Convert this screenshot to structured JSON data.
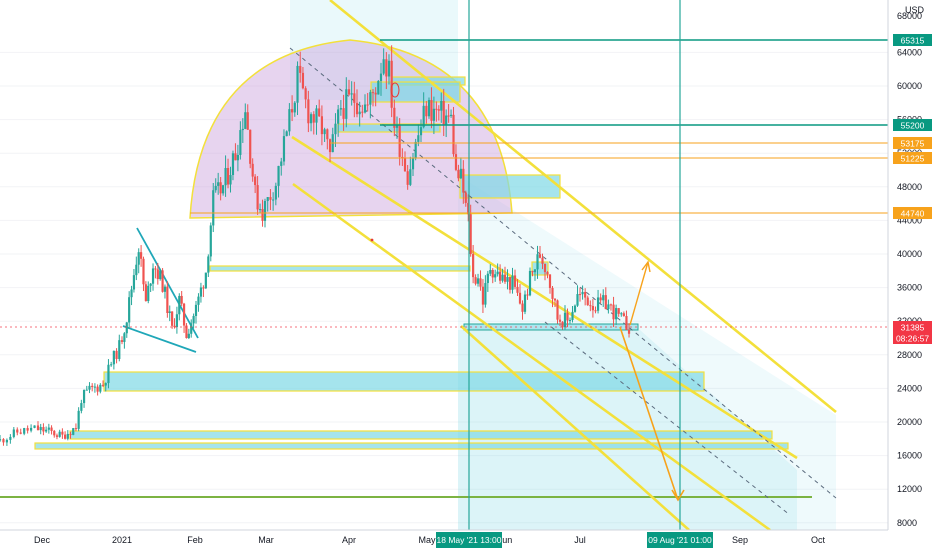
{
  "header": {
    "currency": "USD"
  },
  "price_axis": {
    "top_partial": "68000",
    "ticks": [
      "64000",
      "60000",
      "56000",
      "52000",
      "48000",
      "44000",
      "40000",
      "36000",
      "32000",
      "28000",
      "24000",
      "20000",
      "16000",
      "12000",
      "8000"
    ]
  },
  "time_axis": {
    "ticks": [
      "Dec",
      "2021",
      "Feb",
      "Mar",
      "Apr",
      "May",
      "Jun",
      "Jul",
      "Sep",
      "Oct"
    ]
  },
  "price_badges": [
    {
      "label": "65315",
      "color": "#089981"
    },
    {
      "label": "55200",
      "color": "#089981"
    },
    {
      "label": "53175",
      "color": "#f7a21b"
    },
    {
      "label": "51225",
      "color": "#f7a21b"
    },
    {
      "label": "44740",
      "color": "#f7a21b"
    },
    {
      "label": "31385",
      "color": "#f23645"
    },
    {
      "label": "08:26:57",
      "color": "#f23645"
    }
  ],
  "date_badges": [
    {
      "label": "18 May '21  13:00",
      "color": "#089981"
    },
    {
      "label": "09 Aug '21  01:00",
      "color": "#089981"
    }
  ],
  "colors": {
    "up": "#26a69a",
    "down": "#ef5350",
    "channel": "#f3e03b",
    "zone": "#7fd8e6",
    "arc": "#c9a0dc",
    "projection": "#f7a21b"
  },
  "chart_data": {
    "type": "candlestick",
    "title": "",
    "ylabel": "USD",
    "ylim": [
      7000,
      69000
    ],
    "xrange": [
      "2020-11-20",
      "2021-10-05"
    ],
    "horizontal_levels": [
      65315,
      55200,
      53175,
      51225,
      44740,
      31385
    ],
    "vertical_markers": [
      "2021-05-18 13:00",
      "2021-08-09 01:00"
    ],
    "price_path": [
      [
        "2020-11-20",
        17800
      ],
      [
        "2020-11-25",
        18800
      ],
      [
        "2020-11-30",
        19200
      ],
      [
        "2020-12-05",
        18900
      ],
      [
        "2020-12-10",
        18300
      ],
      [
        "2020-12-15",
        19400
      ],
      [
        "2020-12-17",
        22800
      ],
      [
        "2020-12-20",
        23800
      ],
      [
        "2020-12-25",
        24500
      ],
      [
        "2020-12-28",
        27000
      ],
      [
        "2020-12-31",
        29000
      ],
      [
        "2021-01-03",
        32500
      ],
      [
        "2021-01-07",
        39500
      ],
      [
        "2021-01-08",
        41000
      ],
      [
        "2021-01-11",
        34000
      ],
      [
        "2021-01-14",
        39000
      ],
      [
        "2021-01-18",
        36500
      ],
      [
        "2021-01-22",
        31000
      ],
      [
        "2021-01-25",
        34500
      ],
      [
        "2021-01-28",
        30500
      ],
      [
        "2021-02-01",
        33500
      ],
      [
        "2021-02-05",
        38000
      ],
      [
        "2021-02-08",
        46500
      ],
      [
        "2021-02-12",
        48000
      ],
      [
        "2021-02-17",
        52000
      ],
      [
        "2021-02-21",
        57500
      ],
      [
        "2021-02-25",
        47000
      ],
      [
        "2021-02-28",
        45000
      ],
      [
        "2021-03-05",
        48500
      ],
      [
        "2021-03-10",
        56000
      ],
      [
        "2021-03-13",
        61000
      ],
      [
        "2021-03-17",
        57000
      ],
      [
        "2021-03-22",
        55000
      ],
      [
        "2021-03-25",
        51500
      ],
      [
        "2021-03-29",
        57500
      ],
      [
        "2021-04-03",
        58500
      ],
      [
        "2021-04-08",
        57500
      ],
      [
        "2021-04-11",
        60000
      ],
      [
        "2021-04-14",
        63800
      ],
      [
        "2021-04-16",
        61500
      ],
      [
        "2021-04-18",
        55500
      ],
      [
        "2021-04-23",
        49500
      ],
      [
        "2021-04-26",
        53000
      ],
      [
        "2021-04-30",
        57500
      ],
      [
        "2021-05-03",
        57000
      ],
      [
        "2021-05-07",
        56500
      ],
      [
        "2021-05-10",
        56000
      ],
      [
        "2021-05-12",
        49500
      ],
      [
        "2021-05-14",
        49000
      ],
      [
        "2021-05-17",
        44000
      ],
      [
        "2021-05-19",
        37000
      ],
      [
        "2021-05-21",
        37500
      ],
      [
        "2021-05-23",
        34500
      ],
      [
        "2021-05-26",
        38500
      ],
      [
        "2021-05-31",
        37000
      ],
      [
        "2021-06-04",
        36500
      ],
      [
        "2021-06-08",
        33500
      ],
      [
        "2021-06-11",
        37000
      ],
      [
        "2021-06-15",
        40000
      ],
      [
        "2021-06-18",
        38000
      ],
      [
        "2021-06-22",
        32500
      ],
      [
        "2021-06-26",
        32000
      ],
      [
        "2021-06-30",
        35000
      ],
      [
        "2021-07-03",
        34800
      ],
      [
        "2021-07-07",
        33800
      ],
      [
        "2021-07-11",
        34200
      ],
      [
        "2021-07-15",
        32800
      ],
      [
        "2021-07-18",
        31800
      ],
      [
        "2021-07-20",
        31385
      ]
    ]
  }
}
